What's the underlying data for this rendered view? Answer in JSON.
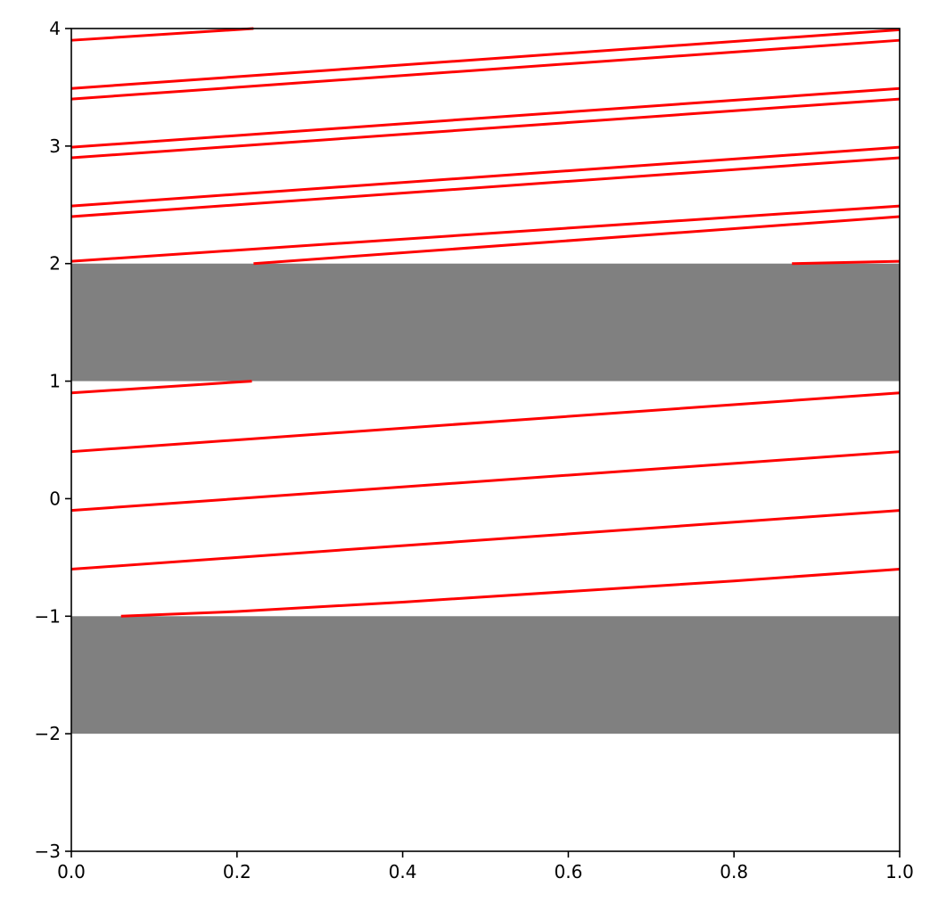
{
  "chart_data": {
    "type": "line",
    "title": "",
    "xlabel": "",
    "ylabel": "",
    "xlim": [
      0,
      1
    ],
    "ylim": [
      -3,
      4
    ],
    "grid": false,
    "legend": "none",
    "line_color": "#ff0000",
    "band_color": "#808080",
    "x_ticks": [
      {
        "value": 0.0,
        "label": "0.0"
      },
      {
        "value": 0.2,
        "label": "0.2"
      },
      {
        "value": 0.4,
        "label": "0.4"
      },
      {
        "value": 0.6,
        "label": "0.6"
      },
      {
        "value": 0.8,
        "label": "0.8"
      },
      {
        "value": 1.0,
        "label": "1.0"
      }
    ],
    "y_ticks": [
      {
        "value": -3,
        "label": "−3"
      },
      {
        "value": -2,
        "label": "−2"
      },
      {
        "value": -1,
        "label": "−1"
      },
      {
        "value": 0,
        "label": "0"
      },
      {
        "value": 1,
        "label": "1"
      },
      {
        "value": 2,
        "label": "2"
      },
      {
        "value": 3,
        "label": "3"
      },
      {
        "value": 4,
        "label": "4"
      }
    ],
    "bands": [
      {
        "y0": 1,
        "y1": 2
      },
      {
        "y0": -2,
        "y1": -1
      }
    ],
    "series": [
      {
        "x": [
          0.06,
          0.2,
          0.4,
          0.6,
          0.8,
          1.0
        ],
        "y": [
          -1.0,
          -0.96,
          -0.88,
          -0.79,
          -0.7,
          -0.6
        ]
      },
      {
        "x": [
          0,
          1
        ],
        "y": [
          -0.6,
          -0.1
        ]
      },
      {
        "x": [
          0,
          1
        ],
        "y": [
          -0.1,
          0.4
        ]
      },
      {
        "x": [
          0,
          1
        ],
        "y": [
          0.4,
          0.9
        ]
      },
      {
        "x": [
          0,
          0.218
        ],
        "y": [
          0.9,
          1.0
        ]
      },
      {
        "x": [
          0.87,
          1.0
        ],
        "y": [
          2.0,
          2.02
        ]
      },
      {
        "x": [
          0,
          1
        ],
        "y": [
          2.02,
          2.49
        ]
      },
      {
        "x": [
          0.22,
          1
        ],
        "y": [
          2.0,
          2.4
        ]
      },
      {
        "x": [
          0,
          1
        ],
        "y": [
          2.4,
          2.9
        ]
      },
      {
        "x": [
          0,
          1
        ],
        "y": [
          2.49,
          2.99
        ]
      },
      {
        "x": [
          0,
          1
        ],
        "y": [
          2.9,
          3.4
        ]
      },
      {
        "x": [
          0,
          1
        ],
        "y": [
          2.99,
          3.49
        ]
      },
      {
        "x": [
          0,
          1
        ],
        "y": [
          3.4,
          3.9
        ]
      },
      {
        "x": [
          0,
          1
        ],
        "y": [
          3.49,
          3.99
        ]
      },
      {
        "x": [
          0,
          0.22
        ],
        "y": [
          3.9,
          4.0
        ]
      }
    ]
  }
}
